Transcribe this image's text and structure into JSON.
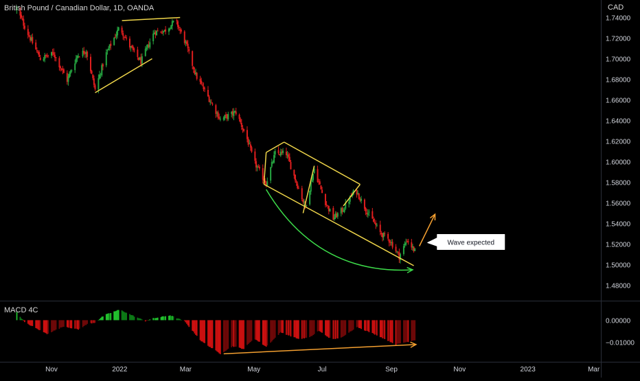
{
  "chart_title": "British Pound / Canadian Dollar, 1D, OANDA",
  "currency_label": "CAD",
  "indicator_title": "MACD 4C",
  "callout_text": "Wave expected",
  "colors": {
    "background": "#000000",
    "up_candle": "#26a641",
    "down_candle": "#e01e1e",
    "trendline_yellow": "#f0d64a",
    "arc_green": "#3ddc4a",
    "arrow_orange": "#f5a030",
    "macd_pos_bright": "#22c12e",
    "macd_pos_dark": "#0c7a16",
    "macd_neg_bright": "#cc1010",
    "macd_neg_dark": "#6e0808"
  },
  "chart_data": [
    {
      "type": "candlestick",
      "title": "British Pound / Canadian Dollar, 1D, OANDA",
      "ylabel": "CAD",
      "ylim": [
        1.465,
        1.757
      ],
      "y_ticks": [
        "1.74000",
        "1.72000",
        "1.70000",
        "1.68000",
        "1.66000",
        "1.64000",
        "1.62000",
        "1.60000",
        "1.58000",
        "1.56000",
        "1.54000",
        "1.52000",
        "1.50000",
        "1.48000"
      ],
      "x_ticks": [
        "Nov",
        "2022",
        "Mar",
        "May",
        "Jul",
        "Sep",
        "Nov",
        "2023",
        "Mar"
      ],
      "close_path": [
        {
          "date": "2021-10-01",
          "close": 1.748
        },
        {
          "date": "2021-10-12",
          "close": 1.722
        },
        {
          "date": "2021-10-22",
          "close": 1.7
        },
        {
          "date": "2021-11-03",
          "close": 1.705
        },
        {
          "date": "2021-11-15",
          "close": 1.679
        },
        {
          "date": "2021-11-24",
          "close": 1.703
        },
        {
          "date": "2021-12-02",
          "close": 1.708
        },
        {
          "date": "2021-12-10",
          "close": 1.67
        },
        {
          "date": "2021-12-20",
          "close": 1.705
        },
        {
          "date": "2022-01-01",
          "close": 1.731
        },
        {
          "date": "2022-01-10",
          "close": 1.712
        },
        {
          "date": "2022-01-20",
          "close": 1.697
        },
        {
          "date": "2022-02-01",
          "close": 1.726
        },
        {
          "date": "2022-02-10",
          "close": 1.727
        },
        {
          "date": "2022-02-20",
          "close": 1.737
        },
        {
          "date": "2022-03-01",
          "close": 1.715
        },
        {
          "date": "2022-03-10",
          "close": 1.684
        },
        {
          "date": "2022-03-20",
          "close": 1.665
        },
        {
          "date": "2022-04-01",
          "close": 1.641
        },
        {
          "date": "2022-04-15",
          "close": 1.648
        },
        {
          "date": "2022-04-25",
          "close": 1.622
        },
        {
          "date": "2022-05-01",
          "close": 1.6
        },
        {
          "date": "2022-05-12",
          "close": 1.579
        },
        {
          "date": "2022-05-20",
          "close": 1.608
        },
        {
          "date": "2022-05-30",
          "close": 1.608
        },
        {
          "date": "2022-06-08",
          "close": 1.58
        },
        {
          "date": "2022-06-16",
          "close": 1.556
        },
        {
          "date": "2022-06-24",
          "close": 1.593
        },
        {
          "date": "2022-07-03",
          "close": 1.563
        },
        {
          "date": "2022-07-11",
          "close": 1.545
        },
        {
          "date": "2022-07-20",
          "close": 1.554
        },
        {
          "date": "2022-07-31",
          "close": 1.573
        },
        {
          "date": "2022-08-10",
          "close": 1.552
        },
        {
          "date": "2022-08-22",
          "close": 1.531
        },
        {
          "date": "2022-08-31",
          "close": 1.523
        },
        {
          "date": "2022-09-08",
          "close": 1.508
        },
        {
          "date": "2022-09-15",
          "close": 1.524
        },
        {
          "date": "2022-09-22",
          "close": 1.513
        }
      ],
      "annotations": [
        {
          "type": "trendline",
          "from": [
            "2021-12-10",
            1.667
          ],
          "to": [
            "2022-01-30",
            1.7
          ]
        },
        {
          "type": "trendline",
          "from": [
            "2022-01-03",
            1.737
          ],
          "to": [
            "2022-02-24",
            1.74
          ]
        },
        {
          "type": "trendline",
          "from": [
            "2022-05-10",
            1.578
          ],
          "to": [
            "2022-09-21",
            1.499
          ]
        },
        {
          "type": "trendline",
          "from": [
            "2022-05-10",
            1.578
          ],
          "to": [
            "2022-05-12",
            1.609
          ]
        },
        {
          "type": "trendline",
          "from": [
            "2022-05-12",
            1.609
          ],
          "to": [
            "2022-05-28",
            1.619
          ]
        },
        {
          "type": "trendline",
          "from": [
            "2022-05-28",
            1.619
          ],
          "to": [
            "2022-08-04",
            1.578
          ]
        },
        {
          "type": "trendline",
          "from": [
            "2022-07-20",
            1.557
          ],
          "to": [
            "2022-08-04",
            1.578
          ]
        },
        {
          "type": "trendline",
          "from": [
            "2022-06-14",
            1.55
          ],
          "to": [
            "2022-06-24",
            1.596
          ]
        },
        {
          "type": "arc",
          "from": [
            "2022-05-12",
            1.573
          ],
          "to": [
            "2022-09-20",
            1.495
          ]
        },
        {
          "type": "arrow",
          "from": [
            "2022-09-26",
            1.518
          ],
          "to": [
            "2022-10-10",
            1.549
          ]
        },
        {
          "type": "callout",
          "text": "Wave expected",
          "at": [
            "2022-10-12",
            1.522
          ]
        }
      ]
    },
    {
      "type": "histogram",
      "title": "MACD 4C",
      "ylim": [
        -0.0182,
        0.0082
      ],
      "y_ticks": [
        "0.00000",
        "−0.01000"
      ],
      "series_path": [
        {
          "date": "2021-10-01",
          "value": 0.0035
        },
        {
          "date": "2021-10-08",
          "value": -0.001
        },
        {
          "date": "2021-10-28",
          "value": -0.0062
        },
        {
          "date": "2021-11-12",
          "value": -0.0028
        },
        {
          "date": "2021-11-25",
          "value": -0.0042
        },
        {
          "date": "2021-12-04",
          "value": -0.0015
        },
        {
          "date": "2021-12-10",
          "value": -0.0011
        },
        {
          "date": "2021-12-18",
          "value": 0.0022
        },
        {
          "date": "2022-01-01",
          "value": 0.0048
        },
        {
          "date": "2022-01-12",
          "value": 0.0022
        },
        {
          "date": "2022-01-24",
          "value": -0.0004
        },
        {
          "date": "2022-01-31",
          "value": 0.0008
        },
        {
          "date": "2022-02-15",
          "value": 0.0022
        },
        {
          "date": "2022-02-28",
          "value": -0.0005
        },
        {
          "date": "2022-03-15",
          "value": -0.0095
        },
        {
          "date": "2022-04-01",
          "value": -0.0152
        },
        {
          "date": "2022-04-12",
          "value": -0.0118
        },
        {
          "date": "2022-04-22",
          "value": -0.013
        },
        {
          "date": "2022-05-01",
          "value": -0.0082
        },
        {
          "date": "2022-05-12",
          "value": -0.012
        },
        {
          "date": "2022-05-25",
          "value": -0.0055
        },
        {
          "date": "2022-06-10",
          "value": -0.0085
        },
        {
          "date": "2022-06-20",
          "value": -0.0078
        },
        {
          "date": "2022-06-28",
          "value": -0.0048
        },
        {
          "date": "2022-07-10",
          "value": -0.0088
        },
        {
          "date": "2022-07-20",
          "value": -0.0075
        },
        {
          "date": "2022-08-01",
          "value": -0.003
        },
        {
          "date": "2022-08-20",
          "value": -0.007
        },
        {
          "date": "2022-09-05",
          "value": -0.011
        },
        {
          "date": "2022-09-22",
          "value": -0.009
        }
      ],
      "annotations": [
        {
          "type": "arrow",
          "from": [
            "2022-04-04",
            -0.0152
          ],
          "to": [
            "2022-09-23",
            -0.011
          ]
        }
      ]
    }
  ]
}
